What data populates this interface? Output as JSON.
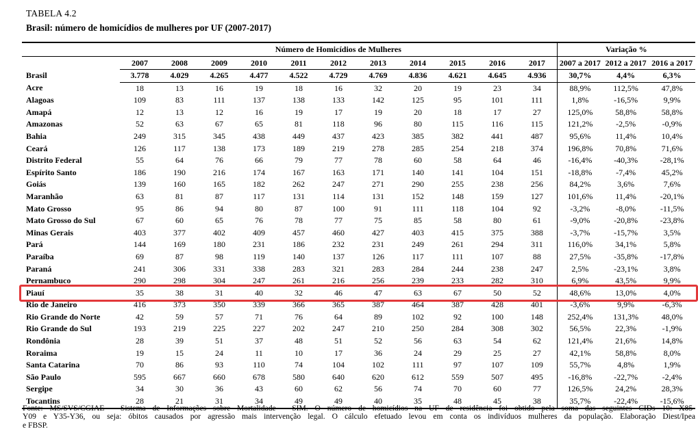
{
  "title": "TABELA 4.2",
  "subtitle": "Brasil: número de homicídios de mulheres por UF (2007-2017)",
  "highlight_color": "#e2383a",
  "table": {
    "group_headers": {
      "numbers": "Número de Homicídios de Mulheres",
      "variation": "Variação %"
    },
    "year_columns": [
      "2007",
      "2008",
      "2009",
      "2010",
      "2011",
      "2012",
      "2013",
      "2014",
      "2015",
      "2016",
      "2017"
    ],
    "variation_columns": [
      "2007 a 2017",
      "2012 a 2017",
      "2016 a 2017"
    ],
    "rows": [
      {
        "label": "Brasil",
        "bold": true,
        "values": [
          "3.778",
          "4.029",
          "4.265",
          "4.477",
          "4.522",
          "4.729",
          "4.769",
          "4.836",
          "4.621",
          "4.645",
          "4.936"
        ],
        "variation": [
          "30,7%",
          "4,4%",
          "6,3%"
        ]
      },
      {
        "label": "Acre",
        "values": [
          "18",
          "13",
          "16",
          "19",
          "18",
          "16",
          "32",
          "20",
          "19",
          "23",
          "34"
        ],
        "variation": [
          "88,9%",
          "112,5%",
          "47,8%"
        ]
      },
      {
        "label": "Alagoas",
        "values": [
          "109",
          "83",
          "111",
          "137",
          "138",
          "133",
          "142",
          "125",
          "95",
          "101",
          "111"
        ],
        "variation": [
          "1,8%",
          "-16,5%",
          "9,9%"
        ]
      },
      {
        "label": "Amapá",
        "values": [
          "12",
          "13",
          "12",
          "16",
          "19",
          "17",
          "19",
          "20",
          "18",
          "17",
          "27"
        ],
        "variation": [
          "125,0%",
          "58,8%",
          "58,8%"
        ]
      },
      {
        "label": "Amazonas",
        "values": [
          "52",
          "63",
          "67",
          "65",
          "81",
          "118",
          "96",
          "80",
          "115",
          "116",
          "115"
        ],
        "variation": [
          "121,2%",
          "-2,5%",
          "-0,9%"
        ]
      },
      {
        "label": "Bahia",
        "values": [
          "249",
          "315",
          "345",
          "438",
          "449",
          "437",
          "423",
          "385",
          "382",
          "441",
          "487"
        ],
        "variation": [
          "95,6%",
          "11,4%",
          "10,4%"
        ]
      },
      {
        "label": "Ceará",
        "values": [
          "126",
          "117",
          "138",
          "173",
          "189",
          "219",
          "278",
          "285",
          "254",
          "218",
          "374"
        ],
        "variation": [
          "196,8%",
          "70,8%",
          "71,6%"
        ]
      },
      {
        "label": "Distrito Federal",
        "values": [
          "55",
          "64",
          "76",
          "66",
          "79",
          "77",
          "78",
          "60",
          "58",
          "64",
          "46"
        ],
        "variation": [
          "-16,4%",
          "-40,3%",
          "-28,1%"
        ]
      },
      {
        "label": "Espírito Santo",
        "values": [
          "186",
          "190",
          "216",
          "174",
          "167",
          "163",
          "171",
          "140",
          "141",
          "104",
          "151"
        ],
        "variation": [
          "-18,8%",
          "-7,4%",
          "45,2%"
        ]
      },
      {
        "label": "Goiás",
        "values": [
          "139",
          "160",
          "165",
          "182",
          "262",
          "247",
          "271",
          "290",
          "255",
          "238",
          "256"
        ],
        "variation": [
          "84,2%",
          "3,6%",
          "7,6%"
        ]
      },
      {
        "label": "Maranhão",
        "values": [
          "63",
          "81",
          "87",
          "117",
          "131",
          "114",
          "131",
          "152",
          "148",
          "159",
          "127"
        ],
        "variation": [
          "101,6%",
          "11,4%",
          "-20,1%"
        ]
      },
      {
        "label": "Mato Grosso",
        "values": [
          "95",
          "86",
          "94",
          "80",
          "87",
          "100",
          "91",
          "111",
          "118",
          "104",
          "92"
        ],
        "variation": [
          "-3,2%",
          "-8,0%",
          "-11,5%"
        ]
      },
      {
        "label": "Mato Grosso do Sul",
        "values": [
          "67",
          "60",
          "65",
          "76",
          "78",
          "77",
          "75",
          "85",
          "58",
          "80",
          "61"
        ],
        "variation": [
          "-9,0%",
          "-20,8%",
          "-23,8%"
        ]
      },
      {
        "label": "Minas Gerais",
        "values": [
          "403",
          "377",
          "402",
          "409",
          "457",
          "460",
          "427",
          "403",
          "415",
          "375",
          "388"
        ],
        "variation": [
          "-3,7%",
          "-15,7%",
          "3,5%"
        ]
      },
      {
        "label": "Pará",
        "values": [
          "144",
          "169",
          "180",
          "231",
          "186",
          "232",
          "231",
          "249",
          "261",
          "294",
          "311"
        ],
        "variation": [
          "116,0%",
          "34,1%",
          "5,8%"
        ]
      },
      {
        "label": "Paraíba",
        "values": [
          "69",
          "87",
          "98",
          "119",
          "140",
          "137",
          "126",
          "117",
          "111",
          "107",
          "88"
        ],
        "variation": [
          "27,5%",
          "-35,8%",
          "-17,8%"
        ]
      },
      {
        "label": "Paraná",
        "values": [
          "241",
          "306",
          "331",
          "338",
          "283",
          "321",
          "283",
          "284",
          "244",
          "238",
          "247"
        ],
        "variation": [
          "2,5%",
          "-23,1%",
          "3,8%"
        ]
      },
      {
        "label": "Pernambuco",
        "values": [
          "290",
          "298",
          "304",
          "247",
          "261",
          "216",
          "256",
          "239",
          "233",
          "282",
          "310"
        ],
        "variation": [
          "6,9%",
          "43,5%",
          "9,9%"
        ]
      },
      {
        "label": "Piauí",
        "highlighted": true,
        "values": [
          "35",
          "38",
          "31",
          "40",
          "32",
          "46",
          "47",
          "63",
          "67",
          "50",
          "52"
        ],
        "variation": [
          "48,6%",
          "13,0%",
          "4,0%"
        ]
      },
      {
        "label": "Rio de Janeiro",
        "values": [
          "416",
          "373",
          "350",
          "339",
          "366",
          "365",
          "387",
          "464",
          "387",
          "428",
          "401"
        ],
        "variation": [
          "-3,6%",
          "9,9%",
          "-6,3%"
        ]
      },
      {
        "label": "Rio Grande do Norte",
        "values": [
          "42",
          "59",
          "57",
          "71",
          "76",
          "64",
          "89",
          "102",
          "92",
          "100",
          "148"
        ],
        "variation": [
          "252,4%",
          "131,3%",
          "48,0%"
        ]
      },
      {
        "label": "Rio Grande do Sul",
        "values": [
          "193",
          "219",
          "225",
          "227",
          "202",
          "247",
          "210",
          "250",
          "284",
          "308",
          "302"
        ],
        "variation": [
          "56,5%",
          "22,3%",
          "-1,9%"
        ]
      },
      {
        "label": "Rondônia",
        "values": [
          "28",
          "39",
          "51",
          "37",
          "48",
          "51",
          "52",
          "56",
          "63",
          "54",
          "62"
        ],
        "variation": [
          "121,4%",
          "21,6%",
          "14,8%"
        ]
      },
      {
        "label": "Roraima",
        "values": [
          "19",
          "15",
          "24",
          "11",
          "10",
          "17",
          "36",
          "24",
          "29",
          "25",
          "27"
        ],
        "variation": [
          "42,1%",
          "58,8%",
          "8,0%"
        ]
      },
      {
        "label": "Santa Catarina",
        "values": [
          "70",
          "86",
          "93",
          "110",
          "74",
          "104",
          "102",
          "111",
          "97",
          "107",
          "109"
        ],
        "variation": [
          "55,7%",
          "4,8%",
          "1,9%"
        ]
      },
      {
        "label": "São Paulo",
        "values": [
          "595",
          "667",
          "660",
          "678",
          "580",
          "640",
          "620",
          "612",
          "559",
          "507",
          "495"
        ],
        "variation": [
          "-16,8%",
          "-22,7%",
          "-2,4%"
        ]
      },
      {
        "label": "Sergipe",
        "values": [
          "34",
          "30",
          "36",
          "43",
          "60",
          "62",
          "56",
          "74",
          "70",
          "60",
          "77"
        ],
        "variation": [
          "126,5%",
          "24,2%",
          "28,3%"
        ]
      },
      {
        "label": "Tocantins",
        "values": [
          "28",
          "21",
          "31",
          "34",
          "49",
          "49",
          "40",
          "35",
          "48",
          "45",
          "38"
        ],
        "variation": [
          "35,7%",
          "-22,4%",
          "-15,6%"
        ]
      }
    ]
  },
  "footnote": {
    "lines": [
      "Fonte: MS/SVS/CGIAE - Sistema de Informações sobre Mortalidade - SIM. O número de homicídios na UF de residência foi obtido pela soma das seguintes CIDs 10: X85-",
      "Y09 e Y35-Y36, ou seja: óbitos causados por agressão mais intervenção legal. O cálculo efetuado levou em conta os indivíduos mulheres da população. Elaboração Diest/Ipea",
      "e FBSP."
    ]
  }
}
